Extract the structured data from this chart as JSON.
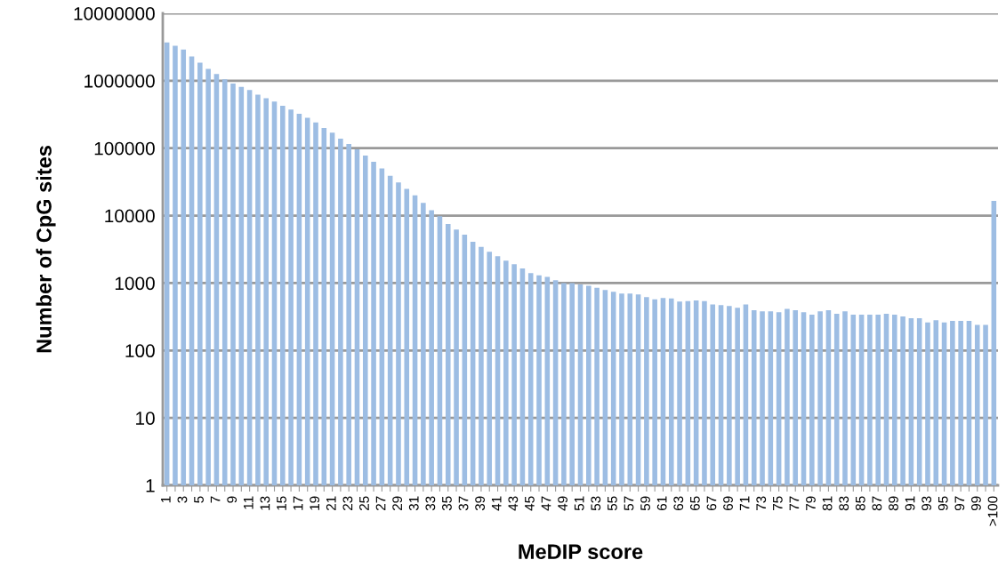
{
  "chart_data": {
    "type": "bar",
    "xlabel": "MeDIP score",
    "ylabel": "Number of CpG sites",
    "categories": [
      "1",
      null,
      "3",
      null,
      "5",
      null,
      "7",
      null,
      "9",
      null,
      "11",
      null,
      "13",
      null,
      "15",
      null,
      "17",
      null,
      "19",
      null,
      "21",
      null,
      "23",
      null,
      "25",
      null,
      "27",
      null,
      "29",
      null,
      "31",
      null,
      "33",
      null,
      "35",
      null,
      "37",
      null,
      "39",
      null,
      "41",
      null,
      "43",
      null,
      "45",
      null,
      "47",
      null,
      "49",
      null,
      "51",
      null,
      "53",
      null,
      "55",
      null,
      "57",
      null,
      "59",
      null,
      "61",
      null,
      "63",
      null,
      "65",
      null,
      "67",
      null,
      "69",
      null,
      "71",
      null,
      "73",
      null,
      "75",
      null,
      "77",
      null,
      "79",
      null,
      "81",
      null,
      "83",
      null,
      "85",
      null,
      "87",
      null,
      "89",
      null,
      "91",
      null,
      "93",
      null,
      "95",
      null,
      "97",
      null,
      "99",
      null,
      ">100"
    ],
    "values": [
      3700000,
      3300000,
      2900000,
      2300000,
      1850000,
      1500000,
      1260000,
      1050000,
      910000,
      810000,
      730000,
      620000,
      550000,
      490000,
      425000,
      375000,
      325000,
      282000,
      240000,
      200000,
      170000,
      138000,
      115000,
      96000,
      78000,
      63000,
      50000,
      39000,
      31000,
      25000,
      20000,
      15500,
      12000,
      9800,
      7500,
      6200,
      5200,
      4100,
      3450,
      2900,
      2500,
      2150,
      1900,
      1650,
      1400,
      1300,
      1230,
      1100,
      1000,
      1000,
      950,
      910,
      850,
      790,
      740,
      700,
      700,
      680,
      620,
      575,
      600,
      590,
      530,
      540,
      550,
      540,
      480,
      470,
      455,
      430,
      480,
      395,
      380,
      380,
      370,
      415,
      395,
      370,
      340,
      380,
      395,
      350,
      380,
      340,
      340,
      340,
      340,
      350,
      340,
      320,
      300,
      300,
      260,
      280,
      260,
      275,
      275,
      275,
      240,
      240,
      16500
    ],
    "color": "#9dbde3",
    "log": true,
    "ylim": [
      1,
      10000000
    ],
    "yticks": [
      1,
      10,
      100,
      1000,
      10000,
      100000,
      1000000,
      10000000
    ],
    "grid": "y"
  }
}
